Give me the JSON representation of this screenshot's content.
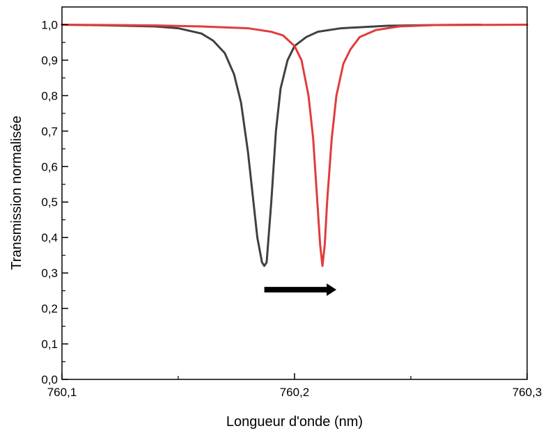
{
  "chart_data": {
    "type": "line",
    "xlabel": "Longueur d'onde (nm)",
    "ylabel": "Transmission normalisée",
    "xlim": [
      760.1,
      760.3
    ],
    "ylim": [
      0.0,
      1.05
    ],
    "x_ticks": [
      {
        "value": 760.1,
        "label": "760,1"
      },
      {
        "value": 760.2,
        "label": "760,2"
      },
      {
        "value": 760.3,
        "label": "760,3"
      }
    ],
    "x_minor_ticks": [
      760.15,
      760.25
    ],
    "y_ticks": [
      {
        "value": 0.0,
        "label": "0,0"
      },
      {
        "value": 0.1,
        "label": "0,1"
      },
      {
        "value": 0.2,
        "label": "0,2"
      },
      {
        "value": 0.3,
        "label": "0,3"
      },
      {
        "value": 0.4,
        "label": "0,4"
      },
      {
        "value": 0.5,
        "label": "0,5"
      },
      {
        "value": 0.6,
        "label": "0,6"
      },
      {
        "value": 0.7,
        "label": "0,7"
      },
      {
        "value": 0.8,
        "label": "0,8"
      },
      {
        "value": 0.9,
        "label": "0,9"
      },
      {
        "value": 1.0,
        "label": "1,0"
      }
    ],
    "grid": false,
    "legend": "none",
    "series": [
      {
        "color": "#404040",
        "x": [
          760.1,
          760.12,
          760.14,
          760.15,
          760.16,
          760.165,
          760.17,
          760.174,
          760.177,
          760.18,
          760.182,
          760.184,
          760.186,
          760.187,
          760.188,
          760.19,
          760.192,
          760.194,
          760.197,
          760.2,
          760.205,
          760.21,
          760.22,
          760.24,
          760.26,
          760.28
        ],
        "y": [
          1.0,
          0.998,
          0.995,
          0.99,
          0.975,
          0.955,
          0.92,
          0.86,
          0.78,
          0.64,
          0.52,
          0.4,
          0.33,
          0.32,
          0.33,
          0.5,
          0.7,
          0.82,
          0.9,
          0.94,
          0.965,
          0.98,
          0.99,
          0.997,
          0.999,
          1.0
        ]
      },
      {
        "color": "#e03c3c",
        "x": [
          760.1,
          760.14,
          760.16,
          760.18,
          760.19,
          760.195,
          760.2,
          760.203,
          760.206,
          760.208,
          760.21,
          760.211,
          760.212,
          760.213,
          760.214,
          760.216,
          760.218,
          760.221,
          760.224,
          760.228,
          760.235,
          760.245,
          760.26,
          760.3
        ],
        "y": [
          1.0,
          0.998,
          0.995,
          0.99,
          0.98,
          0.97,
          0.94,
          0.9,
          0.8,
          0.68,
          0.48,
          0.38,
          0.32,
          0.38,
          0.5,
          0.68,
          0.8,
          0.89,
          0.93,
          0.965,
          0.985,
          0.995,
          0.999,
          1.0
        ]
      }
    ],
    "annotations": [
      {
        "type": "arrow",
        "color": "#000000",
        "x_start": 760.187,
        "x_end": 760.218,
        "y": 0.253
      }
    ]
  }
}
